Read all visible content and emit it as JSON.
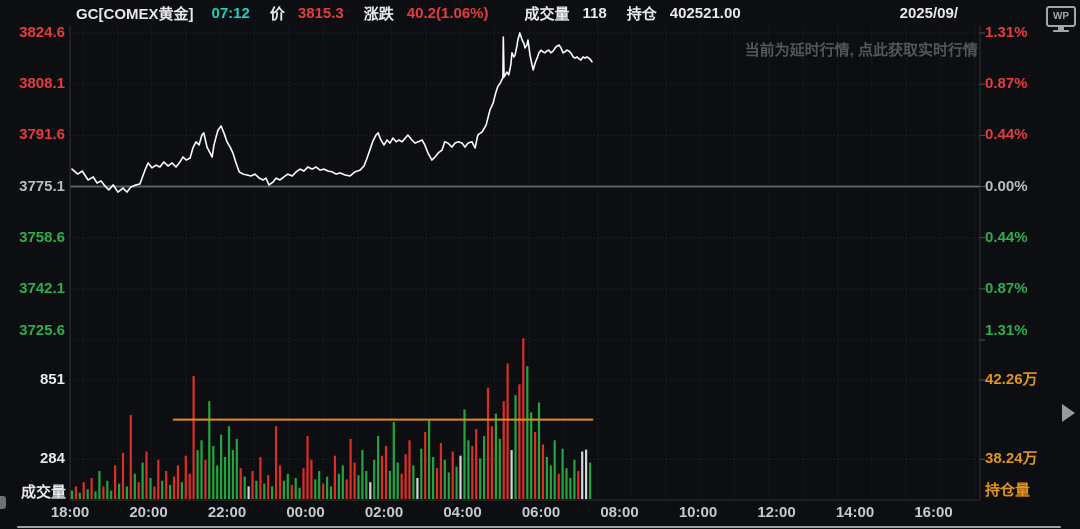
{
  "header": {
    "symbol": "GC[COMEX黄金]",
    "time": "07:12",
    "price_label": "价",
    "price": "3815.3",
    "change_label": "涨跌",
    "change": "40.2(1.06%)",
    "volume_label": "成交量",
    "volume": "118",
    "open_interest_label": "持仓",
    "open_interest": "402521.00",
    "date": "2025/09/"
  },
  "wp_logo": "WP",
  "watermark": "当前为延时行情, 点此获取实时行情",
  "colors": {
    "up": "#e73c3f",
    "down": "#2fae4d",
    "neutral": "#b9bec6",
    "time_accent": "#26cfc2",
    "orange": "#e2951f",
    "price_line": "#fafbfc",
    "bar_up": "#dd2e26",
    "bar_down": "#22a53e",
    "bar_flat": "#d4d7da",
    "oi_line": "#e08b1e"
  },
  "chart_data": {
    "type": "line",
    "title": "GC COMEX黄金 intraday",
    "x_axis": {
      "start_time": "18:00",
      "ticks": [
        {
          "label": "18:00",
          "h": 0
        },
        {
          "label": "20:00",
          "h": 2
        },
        {
          "label": "22:00",
          "h": 4
        },
        {
          "label": "00:00",
          "h": 6
        },
        {
          "label": "02:00",
          "h": 8
        },
        {
          "label": "04:00",
          "h": 10
        },
        {
          "label": "06:00",
          "h": 12
        },
        {
          "label": "08:00",
          "h": 14
        },
        {
          "label": "10:00",
          "h": 16
        },
        {
          "label": "12:00",
          "h": 18
        },
        {
          "label": "14:00",
          "h": 20
        },
        {
          "label": "16:00",
          "h": 22
        }
      ]
    },
    "price_axis": {
      "prev_close": 3775.1,
      "ticks": [
        {
          "label": "3824.6",
          "pct": "1.31%",
          "value": 3824.6,
          "color": "#e73c3f"
        },
        {
          "label": "3808.1",
          "pct": "0.87%",
          "value": 3808.1,
          "color": "#e73c3f"
        },
        {
          "label": "3791.6",
          "pct": "0.44%",
          "value": 3791.6,
          "color": "#e73c3f"
        },
        {
          "label": "3775.1",
          "pct": "0.00%",
          "value": 3775.1,
          "color": "#b9bec6"
        },
        {
          "label": "3758.6",
          "pct": "0.44%",
          "value": 3758.6,
          "color": "#2fae4d"
        },
        {
          "label": "3742.1",
          "pct": "0.87%",
          "value": 3742.1,
          "color": "#2fae4d"
        },
        {
          "label": "3725.6",
          "pct": "1.31%",
          "value": 3725.6,
          "color": "#2fae4d"
        }
      ]
    },
    "price_series": {
      "name": "price",
      "points": [
        [
          0.05,
          3780.7
        ],
        [
          0.2,
          3779.1
        ],
        [
          0.31,
          3780.1
        ],
        [
          0.46,
          3777.2
        ],
        [
          0.59,
          3778.2
        ],
        [
          0.69,
          3776.2
        ],
        [
          0.79,
          3776.9
        ],
        [
          0.89,
          3775.3
        ],
        [
          0.99,
          3774.0
        ],
        [
          1.1,
          3775.6
        ],
        [
          1.22,
          3773.3
        ],
        [
          1.35,
          3774.6
        ],
        [
          1.45,
          3773.3
        ],
        [
          1.55,
          3774.9
        ],
        [
          1.68,
          3775.6
        ],
        [
          1.78,
          3775.9
        ],
        [
          1.91,
          3780.4
        ],
        [
          1.99,
          3782.7
        ],
        [
          2.09,
          3781.1
        ],
        [
          2.19,
          3782.0
        ],
        [
          2.29,
          3781.4
        ],
        [
          2.39,
          3783.0
        ],
        [
          2.5,
          3781.7
        ],
        [
          2.6,
          3782.7
        ],
        [
          2.7,
          3781.4
        ],
        [
          2.8,
          3783.0
        ],
        [
          2.88,
          3784.6
        ],
        [
          2.96,
          3783.6
        ],
        [
          3.06,
          3784.3
        ],
        [
          3.13,
          3787.5
        ],
        [
          3.21,
          3789.5
        ],
        [
          3.29,
          3788.5
        ],
        [
          3.36,
          3791.7
        ],
        [
          3.41,
          3792.4
        ],
        [
          3.49,
          3787.8
        ],
        [
          3.57,
          3785.9
        ],
        [
          3.62,
          3784.6
        ],
        [
          3.67,
          3788.5
        ],
        [
          3.72,
          3791.0
        ],
        [
          3.77,
          3793.3
        ],
        [
          3.85,
          3794.6
        ],
        [
          3.92,
          3792.4
        ],
        [
          4.0,
          3789.5
        ],
        [
          4.08,
          3787.8
        ],
        [
          4.15,
          3785.9
        ],
        [
          4.23,
          3782.7
        ],
        [
          4.31,
          3779.8
        ],
        [
          4.41,
          3779.1
        ],
        [
          4.51,
          3778.8
        ],
        [
          4.61,
          3778.5
        ],
        [
          4.71,
          3779.1
        ],
        [
          4.82,
          3777.8
        ],
        [
          4.92,
          3777.2
        ],
        [
          4.99,
          3777.8
        ],
        [
          5.07,
          3775.6
        ],
        [
          5.17,
          3776.5
        ],
        [
          5.25,
          3777.8
        ],
        [
          5.35,
          3777.2
        ],
        [
          5.45,
          3778.2
        ],
        [
          5.55,
          3779.1
        ],
        [
          5.66,
          3778.5
        ],
        [
          5.76,
          3779.8
        ],
        [
          5.86,
          3780.7
        ],
        [
          5.96,
          3780.1
        ],
        [
          6.06,
          3781.4
        ],
        [
          6.17,
          3780.7
        ],
        [
          6.27,
          3781.4
        ],
        [
          6.37,
          3780.4
        ],
        [
          6.47,
          3780.7
        ],
        [
          6.57,
          3780.1
        ],
        [
          6.68,
          3779.8
        ],
        [
          6.78,
          3779.1
        ],
        [
          6.88,
          3779.5
        ],
        [
          7.01,
          3778.8
        ],
        [
          7.13,
          3778.5
        ],
        [
          7.26,
          3779.8
        ],
        [
          7.39,
          3780.4
        ],
        [
          7.49,
          3781.7
        ],
        [
          7.57,
          3784.3
        ],
        [
          7.64,
          3786.9
        ],
        [
          7.72,
          3789.8
        ],
        [
          7.8,
          3791.7
        ],
        [
          7.85,
          3792.4
        ],
        [
          7.92,
          3790.1
        ],
        [
          8.0,
          3788.5
        ],
        [
          8.08,
          3790.1
        ],
        [
          8.15,
          3789.1
        ],
        [
          8.23,
          3790.7
        ],
        [
          8.31,
          3789.5
        ],
        [
          8.38,
          3790.1
        ],
        [
          8.46,
          3789.5
        ],
        [
          8.54,
          3790.7
        ],
        [
          8.61,
          3791.7
        ],
        [
          8.71,
          3790.1
        ],
        [
          8.79,
          3789.1
        ],
        [
          8.87,
          3789.5
        ],
        [
          8.97,
          3790.1
        ],
        [
          9.04,
          3788.5
        ],
        [
          9.12,
          3785.9
        ],
        [
          9.22,
          3783.6
        ],
        [
          9.3,
          3784.6
        ],
        [
          9.38,
          3785.9
        ],
        [
          9.48,
          3786.9
        ],
        [
          9.55,
          3789.5
        ],
        [
          9.63,
          3789.1
        ],
        [
          9.73,
          3787.8
        ],
        [
          9.81,
          3789.1
        ],
        [
          9.89,
          3789.5
        ],
        [
          9.99,
          3789.1
        ],
        [
          10.06,
          3787.8
        ],
        [
          10.14,
          3789.1
        ],
        [
          10.24,
          3789.5
        ],
        [
          10.32,
          3787.5
        ],
        [
          10.39,
          3791.7
        ],
        [
          10.5,
          3792.7
        ],
        [
          10.6,
          3794.9
        ],
        [
          10.7,
          3799.8
        ],
        [
          10.78,
          3802.0
        ],
        [
          10.85,
          3805.5
        ],
        [
          10.9,
          3807.3
        ],
        [
          10.96,
          3808.4
        ],
        [
          11.01,
          3809.7
        ],
        [
          11.03,
          3810.1
        ],
        [
          11.04,
          3823.3
        ],
        [
          11.06,
          3810.4
        ],
        [
          11.13,
          3812.0
        ],
        [
          11.18,
          3811.1
        ],
        [
          11.23,
          3814.3
        ],
        [
          11.26,
          3818.2
        ],
        [
          11.31,
          3816.9
        ],
        [
          11.34,
          3817.5
        ],
        [
          11.39,
          3820.7
        ],
        [
          11.41,
          3822.3
        ],
        [
          11.46,
          3824.6
        ],
        [
          11.52,
          3822.3
        ],
        [
          11.57,
          3821.1
        ],
        [
          11.59,
          3819.8
        ],
        [
          11.64,
          3820.7
        ],
        [
          11.67,
          3822.3
        ],
        [
          11.72,
          3817.5
        ],
        [
          11.77,
          3814.3
        ],
        [
          11.8,
          3812.7
        ],
        [
          11.85,
          3814.9
        ],
        [
          11.9,
          3816.5
        ],
        [
          11.95,
          3818.2
        ],
        [
          12.0,
          3819.1
        ],
        [
          12.05,
          3818.5
        ],
        [
          12.1,
          3818.2
        ],
        [
          12.15,
          3818.8
        ],
        [
          12.2,
          3819.1
        ],
        [
          12.25,
          3818.2
        ],
        [
          12.31,
          3818.8
        ],
        [
          12.36,
          3819.8
        ],
        [
          12.41,
          3820.4
        ],
        [
          12.46,
          3820.7
        ],
        [
          12.51,
          3819.8
        ],
        [
          12.56,
          3818.2
        ],
        [
          12.61,
          3818.5
        ],
        [
          12.66,
          3819.1
        ],
        [
          12.71,
          3818.8
        ],
        [
          12.76,
          3818.2
        ],
        [
          12.82,
          3816.9
        ],
        [
          12.87,
          3816.5
        ],
        [
          12.92,
          3816.9
        ],
        [
          12.97,
          3816.2
        ],
        [
          13.02,
          3815.9
        ],
        [
          13.07,
          3816.9
        ],
        [
          13.12,
          3816.5
        ],
        [
          13.17,
          3816.9
        ],
        [
          13.22,
          3816.5
        ],
        [
          13.27,
          3815.9
        ],
        [
          13.3,
          3815.3
        ]
      ]
    },
    "volume_axis": {
      "title": "成交量",
      "ticks": [
        {
          "label": "851",
          "value": 851
        },
        {
          "label": "284",
          "value": 284
        }
      ]
    },
    "volume_bars": {
      "start_h": 0.05,
      "step_h": 0.1,
      "data": [
        [
          60,
          "g"
        ],
        [
          90,
          "r"
        ],
        [
          45,
          "g"
        ],
        [
          120,
          "r"
        ],
        [
          70,
          "g"
        ],
        [
          150,
          "r"
        ],
        [
          55,
          "g"
        ],
        [
          200,
          "g"
        ],
        [
          90,
          "r"
        ],
        [
          130,
          "g"
        ],
        [
          60,
          "g"
        ],
        [
          240,
          "r"
        ],
        [
          110,
          "g"
        ],
        [
          330,
          "r"
        ],
        [
          90,
          "g"
        ],
        [
          600,
          "r"
        ],
        [
          180,
          "g"
        ],
        [
          120,
          "r"
        ],
        [
          260,
          "g"
        ],
        [
          340,
          "r"
        ],
        [
          150,
          "g"
        ],
        [
          90,
          "r"
        ],
        [
          280,
          "r"
        ],
        [
          130,
          "g"
        ],
        [
          200,
          "r"
        ],
        [
          100,
          "g"
        ],
        [
          160,
          "r"
        ],
        [
          240,
          "r"
        ],
        [
          120,
          "g"
        ],
        [
          310,
          "r"
        ],
        [
          180,
          "r"
        ],
        [
          880,
          "r"
        ],
        [
          350,
          "g"
        ],
        [
          420,
          "g"
        ],
        [
          280,
          "r"
        ],
        [
          700,
          "g"
        ],
        [
          380,
          "g"
        ],
        [
          240,
          "g"
        ],
        [
          460,
          "g"
        ],
        [
          300,
          "g"
        ],
        [
          520,
          "g"
        ],
        [
          350,
          "g"
        ],
        [
          430,
          "g"
        ],
        [
          220,
          "r"
        ],
        [
          160,
          "g"
        ],
        [
          90,
          "w"
        ],
        [
          200,
          "r"
        ],
        [
          130,
          "g"
        ],
        [
          300,
          "r"
        ],
        [
          110,
          "g"
        ],
        [
          170,
          "r"
        ],
        [
          90,
          "g"
        ],
        [
          520,
          "r"
        ],
        [
          240,
          "r"
        ],
        [
          130,
          "g"
        ],
        [
          180,
          "g"
        ],
        [
          100,
          "r"
        ],
        [
          150,
          "g"
        ],
        [
          80,
          "g"
        ],
        [
          220,
          "r"
        ],
        [
          450,
          "r"
        ],
        [
          280,
          "r"
        ],
        [
          140,
          "g"
        ],
        [
          200,
          "g"
        ],
        [
          110,
          "r"
        ],
        [
          160,
          "g"
        ],
        [
          90,
          "g"
        ],
        [
          310,
          "r"
        ],
        [
          180,
          "g"
        ],
        [
          240,
          "g"
        ],
        [
          140,
          "r"
        ],
        [
          430,
          "r"
        ],
        [
          260,
          "r"
        ],
        [
          170,
          "g"
        ],
        [
          350,
          "g"
        ],
        [
          200,
          "g"
        ],
        [
          120,
          "w"
        ],
        [
          280,
          "g"
        ],
        [
          450,
          "g"
        ],
        [
          310,
          "r"
        ],
        [
          380,
          "r"
        ],
        [
          200,
          "g"
        ],
        [
          550,
          "g"
        ],
        [
          260,
          "g"
        ],
        [
          180,
          "r"
        ],
        [
          320,
          "r"
        ],
        [
          420,
          "r"
        ],
        [
          240,
          "g"
        ],
        [
          150,
          "w"
        ],
        [
          360,
          "g"
        ],
        [
          480,
          "r"
        ],
        [
          560,
          "g"
        ],
        [
          300,
          "g"
        ],
        [
          220,
          "r"
        ],
        [
          400,
          "r"
        ],
        [
          280,
          "g"
        ],
        [
          190,
          "g"
        ],
        [
          340,
          "r"
        ],
        [
          230,
          "g"
        ],
        [
          310,
          "w"
        ],
        [
          640,
          "g"
        ],
        [
          420,
          "g"
        ],
        [
          380,
          "r"
        ],
        [
          500,
          "r"
        ],
        [
          290,
          "g"
        ],
        [
          450,
          "g"
        ],
        [
          795,
          "r"
        ],
        [
          520,
          "r"
        ],
        [
          610,
          "g"
        ],
        [
          430,
          "g"
        ],
        [
          700,
          "r"
        ],
        [
          970,
          "r"
        ],
        [
          350,
          "w"
        ],
        [
          743,
          "g"
        ],
        [
          820,
          "r"
        ],
        [
          1150,
          "r"
        ],
        [
          950,
          "g"
        ],
        [
          620,
          "g"
        ],
        [
          480,
          "r"
        ],
        [
          690,
          "g"
        ],
        [
          390,
          "r"
        ],
        [
          300,
          "g"
        ],
        [
          240,
          "g"
        ],
        [
          420,
          "g"
        ],
        [
          180,
          "r"
        ],
        [
          360,
          "g"
        ],
        [
          220,
          "g"
        ],
        [
          150,
          "g"
        ],
        [
          280,
          "g"
        ],
        [
          200,
          "r"
        ],
        [
          340,
          "w"
        ],
        [
          353,
          "w"
        ],
        [
          260,
          "g"
        ]
      ]
    },
    "oi_axis": {
      "title": "持仓量",
      "ticks": [
        {
          "label": "42.26万",
          "value": 42.26
        },
        {
          "label": "38.24万",
          "value": 38.24
        }
      ]
    },
    "oi_line": {
      "value_wan": 40.25,
      "start_h": 2.62,
      "end_h": 13.33
    }
  }
}
